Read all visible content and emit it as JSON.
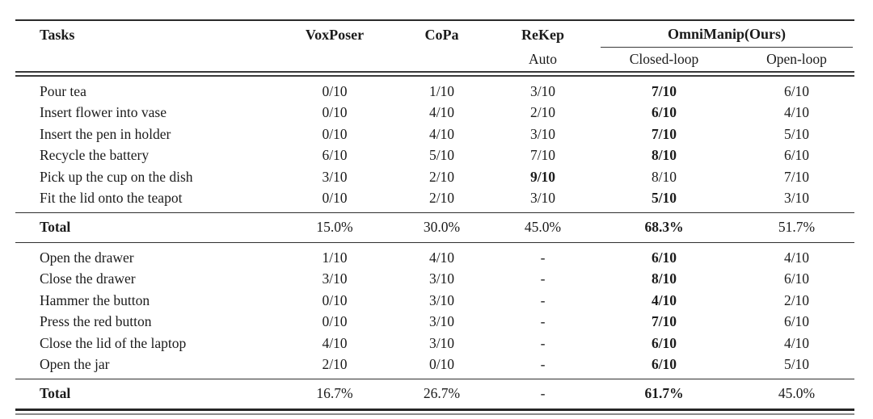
{
  "table": {
    "header": {
      "tasks": "Tasks",
      "voxposer": "VoxPoser",
      "copa": "CoPa",
      "rekep": "ReKep",
      "rekep_mode": "Auto",
      "omnimanip": "OmniManip(Ours)",
      "closed": "Closed-loop",
      "open": "Open-loop"
    },
    "section1": {
      "rows": [
        {
          "task": "Pour tea",
          "voxposer": "0/10",
          "copa": "1/10",
          "rekep": "3/10",
          "closed": "7/10",
          "open": "6/10"
        },
        {
          "task": "Insert flower into vase",
          "voxposer": "0/10",
          "copa": "4/10",
          "rekep": "2/10",
          "closed": "6/10",
          "open": "4/10"
        },
        {
          "task": "Insert the pen in holder",
          "voxposer": "0/10",
          "copa": "4/10",
          "rekep": "3/10",
          "closed": "7/10",
          "open": "5/10"
        },
        {
          "task": "Recycle the battery",
          "voxposer": "6/10",
          "copa": "5/10",
          "rekep": "7/10",
          "closed": "8/10",
          "open": "6/10"
        },
        {
          "task": "Pick up the cup on the dish",
          "voxposer": "3/10",
          "copa": "2/10",
          "rekep": "9/10",
          "closed": "8/10",
          "open": "7/10"
        },
        {
          "task": "Fit the lid onto the teapot",
          "voxposer": "0/10",
          "copa": "2/10",
          "rekep": "3/10",
          "closed": "5/10",
          "open": "3/10"
        }
      ],
      "total": {
        "label": "Total",
        "voxposer": "15.0%",
        "copa": "30.0%",
        "rekep": "45.0%",
        "closed": "68.3%",
        "open": "51.7%"
      }
    },
    "section2": {
      "rows": [
        {
          "task": "Open the drawer",
          "voxposer": "1/10",
          "copa": "4/10",
          "rekep": "-",
          "closed": "6/10",
          "open": "4/10"
        },
        {
          "task": "Close the drawer",
          "voxposer": "3/10",
          "copa": "3/10",
          "rekep": "-",
          "closed": "8/10",
          "open": "6/10"
        },
        {
          "task": "Hammer the button",
          "voxposer": "0/10",
          "copa": "3/10",
          "rekep": "-",
          "closed": "4/10",
          "open": "2/10"
        },
        {
          "task": "Press the red button",
          "voxposer": "0/10",
          "copa": "3/10",
          "rekep": "-",
          "closed": "7/10",
          "open": "6/10"
        },
        {
          "task": "Close the lid of the laptop",
          "voxposer": "4/10",
          "copa": "3/10",
          "rekep": "-",
          "closed": "6/10",
          "open": "4/10"
        },
        {
          "task": "Open the jar",
          "voxposer": "2/10",
          "copa": "0/10",
          "rekep": "-",
          "closed": "6/10",
          "open": "5/10"
        }
      ],
      "total": {
        "label": "Total",
        "voxposer": "16.7%",
        "copa": "26.7%",
        "rekep": "-",
        "closed": "61.7%",
        "open": "45.0%"
      }
    }
  }
}
